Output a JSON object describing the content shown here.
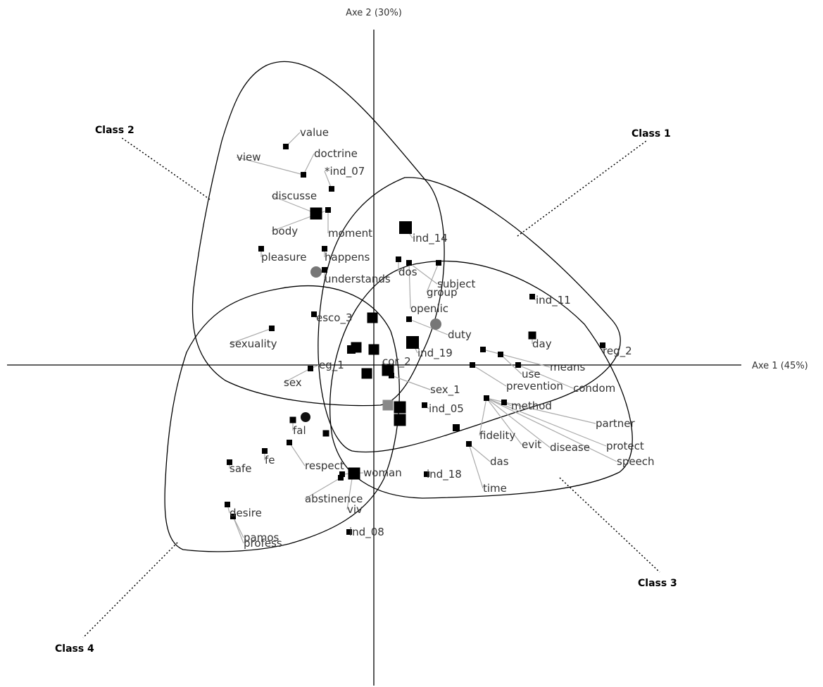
{
  "chart_data": {
    "type": "scatter",
    "title": "",
    "xlabel": "Axe 1 (45%)",
    "ylabel": "Axe 2 (30%)",
    "xlim": [
      -5.2,
      5.2
    ],
    "ylim": [
      -4.5,
      5.1
    ],
    "grid": false,
    "classes": [
      {
        "name": "Class 1"
      },
      {
        "name": "Class 2"
      },
      {
        "name": "Class 3"
      },
      {
        "name": "Class 4"
      }
    ],
    "words": [
      {
        "label": "value",
        "marker": [
          -1.25,
          3.1
        ],
        "text": [
          -1.05,
          3.25
        ]
      },
      {
        "label": "view",
        "marker": [
          -1.0,
          2.7
        ],
        "text": [
          -1.95,
          2.9
        ]
      },
      {
        "label": "doctrine",
        "marker": [
          -1.0,
          2.7
        ],
        "text": [
          -0.85,
          2.95
        ]
      },
      {
        "label": "*ind_07",
        "marker": [
          -0.6,
          2.5
        ],
        "text": [
          -0.7,
          2.7
        ]
      },
      {
        "label": "discusse",
        "marker": [
          -0.82,
          2.15
        ],
        "text": [
          -1.45,
          2.35
        ]
      },
      {
        "label": "body",
        "marker": [
          -0.65,
          2.2
        ],
        "text": [
          -1.45,
          1.85
        ]
      },
      {
        "label": "moment",
        "marker": [
          -0.65,
          2.2
        ],
        "text": [
          -0.65,
          1.82
        ]
      },
      {
        "label": "ind_14",
        "marker": [
          0.45,
          1.95
        ],
        "text": [
          0.55,
          1.75
        ]
      },
      {
        "label": "pleasure",
        "marker": [
          -1.6,
          1.65
        ],
        "text": [
          -1.6,
          1.48
        ]
      },
      {
        "label": "happens",
        "marker": [
          -0.7,
          1.65
        ],
        "text": [
          -0.7,
          1.48
        ]
      },
      {
        "label": "understands",
        "marker": [
          -0.7,
          1.35
        ],
        "text": [
          -0.7,
          1.17
        ]
      },
      {
        "label": "dos",
        "marker": [
          0.35,
          1.5
        ],
        "text": [
          0.35,
          1.27
        ]
      },
      {
        "label": "subject",
        "marker": [
          0.5,
          1.45
        ],
        "text": [
          0.9,
          1.1
        ]
      },
      {
        "label": "group",
        "marker": [
          0.92,
          1.45
        ],
        "text": [
          0.75,
          0.98
        ]
      },
      {
        "label": "openlic",
        "marker": [
          0.5,
          1.45
        ],
        "text": [
          0.52,
          0.75
        ]
      },
      {
        "label": "ind_11",
        "marker": [
          2.25,
          0.97
        ],
        "text": [
          2.3,
          0.87
        ]
      },
      {
        "label": "esco_3",
        "marker": [
          -0.85,
          0.72
        ],
        "text": [
          -0.82,
          0.62
        ]
      },
      {
        "label": "duty",
        "marker": [
          0.5,
          0.65
        ],
        "text": [
          1.05,
          0.38
        ]
      },
      {
        "label": "sexuality",
        "marker": [
          -1.45,
          0.52
        ],
        "text": [
          -2.05,
          0.25
        ]
      },
      {
        "label": "day",
        "marker": [
          2.25,
          0.42
        ],
        "text": [
          2.25,
          0.25
        ]
      },
      {
        "label": "ind_19",
        "marker": [
          0.55,
          0.32
        ],
        "text": [
          0.62,
          0.12
        ]
      },
      {
        "label": "reg_2",
        "marker": [
          3.25,
          0.28
        ],
        "text": [
          3.25,
          0.15
        ]
      },
      {
        "label": "means",
        "marker": [
          1.55,
          0.22
        ],
        "text": [
          2.5,
          -0.08
        ]
      },
      {
        "label": "eg_1",
        "marker": [
          -0.9,
          -0.05
        ],
        "text": [
          -0.78,
          -0.05
        ]
      },
      {
        "label": "cor_2",
        "marker": [
          0.18,
          -0.1
        ],
        "text": [
          0.12,
          0.0
        ]
      },
      {
        "label": "use",
        "marker": [
          1.8,
          0.15
        ],
        "text": [
          2.1,
          -0.18
        ]
      },
      {
        "label": "prevention",
        "marker": [
          1.4,
          0.0
        ],
        "text": [
          1.88,
          -0.35
        ]
      },
      {
        "label": "condom",
        "marker": [
          2.05,
          0.0
        ],
        "text": [
          2.83,
          -0.38
        ]
      },
      {
        "label": "sex",
        "marker": [
          -0.9,
          -0.05
        ],
        "text": [
          -1.28,
          -0.3
        ]
      },
      {
        "label": "sex_1",
        "marker": [
          0.25,
          -0.15
        ],
        "text": [
          0.8,
          -0.4
        ]
      },
      {
        "label": "ind_05",
        "marker": [
          0.72,
          -0.57
        ],
        "text": [
          0.78,
          -0.67
        ]
      },
      {
        "label": "method",
        "marker": [
          1.85,
          -0.53
        ],
        "text": [
          1.95,
          -0.63
        ]
      },
      {
        "label": "partner",
        "marker": [
          1.6,
          -0.47
        ],
        "text": [
          3.15,
          -0.88
        ]
      },
      {
        "label": "fal",
        "marker": [
          -1.15,
          -0.78
        ],
        "text": [
          -1.15,
          -0.98
        ]
      },
      {
        "label": "fidelity",
        "marker": [
          1.6,
          -0.47
        ],
        "text": [
          1.5,
          -1.05
        ]
      },
      {
        "label": "evit",
        "marker": [
          1.6,
          -0.47
        ],
        "text": [
          2.1,
          -1.18
        ]
      },
      {
        "label": "disease",
        "marker": [
          1.6,
          -0.47
        ],
        "text": [
          2.5,
          -1.22
        ]
      },
      {
        "label": "protect",
        "marker": [
          1.6,
          -0.47
        ],
        "text": [
          3.3,
          -1.2
        ]
      },
      {
        "label": "fe",
        "marker": [
          -1.55,
          -1.22
        ],
        "text": [
          -1.55,
          -1.4
        ]
      },
      {
        "label": "respect",
        "marker": [
          -1.2,
          -1.1
        ],
        "text": [
          -0.98,
          -1.48
        ]
      },
      {
        "label": "das",
        "marker": [
          1.35,
          -1.12
        ],
        "text": [
          1.65,
          -1.42
        ]
      },
      {
        "label": "speech",
        "marker": [
          1.6,
          -0.47
        ],
        "text": [
          3.45,
          -1.42
        ]
      },
      {
        "label": "safe",
        "marker": [
          -2.05,
          -1.38
        ],
        "text": [
          -2.05,
          -1.52
        ]
      },
      {
        "label": "woman",
        "marker": [
          -0.45,
          -1.55
        ],
        "text": [
          -0.15,
          -1.58
        ]
      },
      {
        "label": "ind_18",
        "marker": [
          0.75,
          -1.55
        ],
        "text": [
          0.75,
          -1.6
        ]
      },
      {
        "label": "time",
        "marker": [
          1.35,
          -1.12
        ],
        "text": [
          1.55,
          -1.8
        ]
      },
      {
        "label": "abstinence",
        "marker": [
          -0.47,
          -1.6
        ],
        "text": [
          -0.98,
          -1.95
        ]
      },
      {
        "label": "viv",
        "marker": [
          -0.3,
          -1.55
        ],
        "text": [
          -0.38,
          -2.1
        ]
      },
      {
        "label": "desire",
        "marker": [
          -2.08,
          -1.98
        ],
        "text": [
          -2.05,
          -2.15
        ]
      },
      {
        "label": "ind_08",
        "marker": [
          -0.35,
          -2.37
        ],
        "text": [
          -0.35,
          -2.42
        ]
      },
      {
        "label": "pamos",
        "marker": [
          -2.0,
          -2.15
        ],
        "text": [
          -1.85,
          -2.5
        ]
      },
      {
        "label": "profess",
        "marker": [
          -2.0,
          -2.15
        ],
        "text": [
          -1.85,
          -2.58
        ]
      }
    ],
    "centroid_markers": [
      {
        "x": -0.82,
        "y": 1.32,
        "shape": "circle",
        "color": "#777777",
        "size": 8
      },
      {
        "x": 0.88,
        "y": 0.58,
        "shape": "circle",
        "color": "#777777",
        "size": 8
      },
      {
        "x": -0.97,
        "y": -0.74,
        "shape": "circle",
        "color": "#111111",
        "size": 7
      },
      {
        "x": 0.2,
        "y": -0.57,
        "shape": "square",
        "color": "#888888",
        "size": 15
      }
    ],
    "extra_markers": [
      {
        "x": 0.45,
        "y": 1.95,
        "size": 18
      },
      {
        "x": -0.82,
        "y": 2.15,
        "size": 17
      },
      {
        "x": -0.02,
        "y": 0.67,
        "size": 15
      },
      {
        "x": 0.55,
        "y": 0.32,
        "size": 18
      },
      {
        "x": 0.0,
        "y": 0.22,
        "size": 15
      },
      {
        "x": -0.25,
        "y": 0.25,
        "size": 15
      },
      {
        "x": -0.32,
        "y": 0.22,
        "size": 12
      },
      {
        "x": -0.1,
        "y": -0.12,
        "size": 15
      },
      {
        "x": 0.2,
        "y": -0.07,
        "size": 17
      },
      {
        "x": 0.37,
        "y": -0.6,
        "size": 17
      },
      {
        "x": 0.37,
        "y": -0.78,
        "size": 17
      },
      {
        "x": -0.28,
        "y": -1.54,
        "size": 17
      },
      {
        "x": -0.68,
        "y": -0.97,
        "size": 9
      },
      {
        "x": 1.17,
        "y": -0.89,
        "size": 10
      },
      {
        "x": 2.25,
        "y": 0.42,
        "size": 11
      },
      {
        "x": -1.15,
        "y": -0.78,
        "size": 9
      },
      {
        "x": -1.2,
        "y": -1.1,
        "size": 8
      }
    ]
  }
}
